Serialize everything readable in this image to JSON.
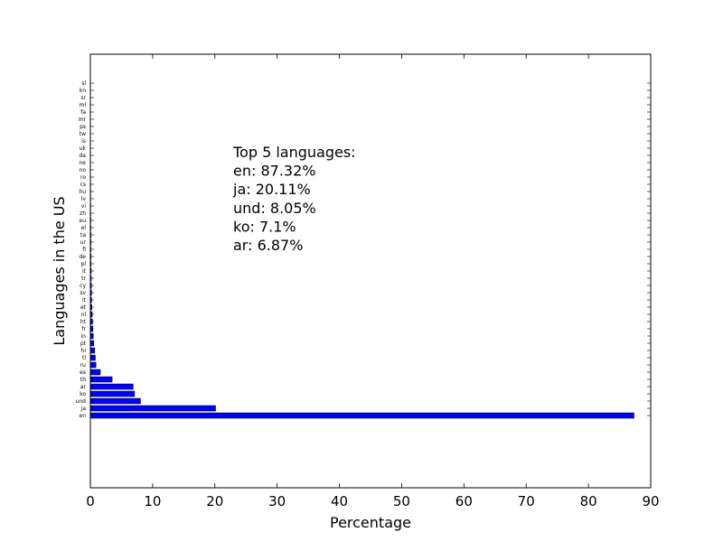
{
  "chart_data": {
    "type": "bar",
    "orientation": "horizontal",
    "title": "",
    "xlabel": "Percentage",
    "ylabel": "Languages in the US",
    "xlim": [
      0,
      90
    ],
    "xticks": [
      0,
      10,
      20,
      30,
      40,
      50,
      60,
      70,
      80,
      90
    ],
    "grid": false,
    "bar_color": "#0000ff",
    "bar_edge_color": "#000000",
    "categories": [
      "en",
      "ja",
      "und",
      "ko",
      "ar",
      "th",
      "es",
      "ru",
      "tl",
      "hi",
      "pt",
      "in",
      "fr",
      "ht",
      "nl",
      "et",
      "it",
      "sv",
      "cy",
      "tr",
      "it",
      "pl",
      "de",
      "fi",
      "ur",
      "ta",
      "el",
      "eu",
      "zh",
      "vi",
      "lv",
      "hu",
      "cs",
      "ro",
      "no",
      "ne",
      "da",
      "uk",
      "is",
      "tw",
      "ps",
      "mr",
      "fa",
      "ml",
      "sr",
      "kn",
      "sl"
    ],
    "values": [
      87.32,
      20.11,
      8.05,
      7.1,
      6.87,
      3.5,
      1.6,
      0.9,
      0.8,
      0.7,
      0.55,
      0.45,
      0.4,
      0.35,
      0.3,
      0.25,
      0.2,
      0.2,
      0.18,
      0.15,
      0.15,
      0.12,
      0.12,
      0.1,
      0.1,
      0.1,
      0.08,
      0.08,
      0.06,
      0.06,
      0.05,
      0.05,
      0.05,
      0.04,
      0.04,
      0.04,
      0.03,
      0.03,
      0.03,
      0.02,
      0.02,
      0.02,
      0.02,
      0.02,
      0.01,
      0.01,
      0.01
    ],
    "annotation": {
      "lines": [
        "Top 5 languages:",
        "en: 87.32%",
        "ja: 20.11%",
        "und: 8.05%",
        "ko: 7.1%",
        "ar: 6.87%"
      ]
    }
  }
}
